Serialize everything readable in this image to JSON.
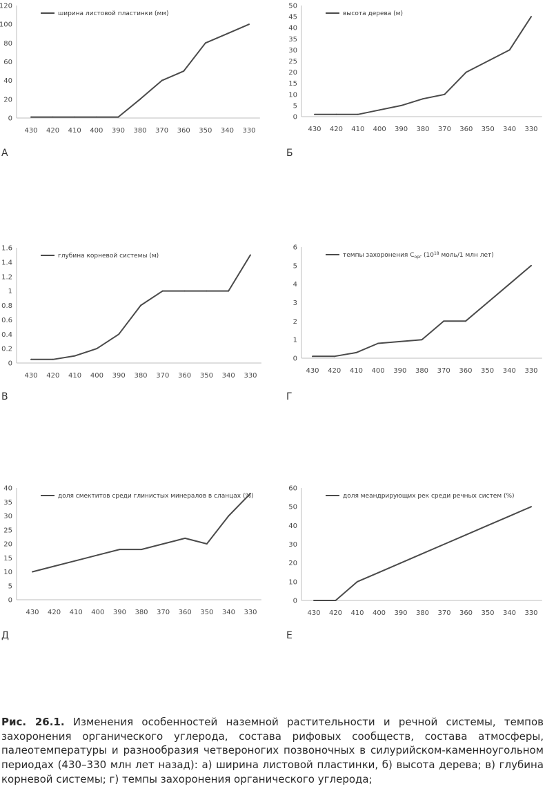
{
  "chart_data": [
    {
      "type": "line",
      "panel_label": "А",
      "legend": "ширина листовой пластинки (мм)",
      "x": [
        "430",
        "420",
        "410",
        "400",
        "390",
        "380",
        "370",
        "360",
        "350",
        "340",
        "330"
      ],
      "y": [
        1,
        1,
        1,
        1,
        1,
        20,
        40,
        50,
        80,
        90,
        100
      ],
      "yticks": [
        "0",
        "20",
        "40",
        "60",
        "80",
        "100",
        "120"
      ],
      "ylim": [
        0,
        120
      ],
      "line_color": "#4a4a4a"
    },
    {
      "type": "line",
      "panel_label": "Б",
      "legend": "высота дерева (м)",
      "x": [
        "430",
        "420",
        "410",
        "400",
        "390",
        "380",
        "370",
        "360",
        "350",
        "340",
        "330"
      ],
      "y": [
        1,
        1,
        1,
        3,
        5,
        8,
        10,
        20,
        25,
        30,
        45
      ],
      "yticks": [
        "0",
        "5",
        "10",
        "15",
        "20",
        "25",
        "30",
        "35",
        "40",
        "45",
        "50"
      ],
      "ylim": [
        0,
        50
      ],
      "line_color": "#4a4a4a"
    },
    {
      "type": "line",
      "panel_label": "В",
      "legend": "глубина корневой системы (м)",
      "x": [
        "430",
        "420",
        "410",
        "400",
        "390",
        "380",
        "370",
        "360",
        "350",
        "340",
        "330"
      ],
      "y": [
        0.05,
        0.05,
        0.1,
        0.2,
        0.4,
        0.8,
        1,
        1,
        1,
        1,
        1.5
      ],
      "yticks": [
        "0",
        "0.2",
        "0.4",
        "0.6",
        "0.8",
        "1",
        "1.2",
        "1.4",
        "1.6"
      ],
      "ylim": [
        0,
        1.6
      ],
      "line_color": "#4a4a4a"
    },
    {
      "type": "line",
      "panel_label": "Г",
      "legend": "темпы захоронения C",
      "legend_sub": "орг",
      "legend_tail_a": " (10",
      "legend_sup": "18",
      "legend_tail_b": " моль/1 млн лет)",
      "x": [
        "430",
        "420",
        "410",
        "400",
        "390",
        "380",
        "370",
        "360",
        "350",
        "340",
        "330"
      ],
      "y": [
        0.1,
        0.1,
        0.3,
        0.8,
        0.9,
        1,
        2,
        2,
        3,
        4,
        5
      ],
      "yticks": [
        "0",
        "1",
        "2",
        "3",
        "4",
        "5",
        "6"
      ],
      "ylim": [
        0,
        6
      ],
      "line_color": "#4a4a4a"
    },
    {
      "type": "line",
      "panel_label": "Д",
      "legend": "доля смектитов среди глинистых минералов в сланцах (%)",
      "x": [
        "430",
        "420",
        "410",
        "400",
        "390",
        "380",
        "370",
        "360",
        "350",
        "340",
        "330"
      ],
      "y": [
        10,
        12,
        14,
        16,
        18,
        18,
        20,
        22,
        20,
        30,
        38
      ],
      "yticks": [
        "0",
        "5",
        "10",
        "15",
        "20",
        "25",
        "30",
        "35",
        "40"
      ],
      "ylim": [
        0,
        40
      ],
      "line_color": "#4a4a4a"
    },
    {
      "type": "line",
      "panel_label": "Е",
      "legend": "доля меандрирующих рек среди речных систем (%)",
      "x": [
        "430",
        "420",
        "410",
        "400",
        "390",
        "380",
        "370",
        "360",
        "350",
        "340",
        "330"
      ],
      "y": [
        0,
        0,
        10,
        15,
        20,
        25,
        30,
        35,
        40,
        45,
        50
      ],
      "yticks": [
        "0",
        "10",
        "20",
        "30",
        "40",
        "50",
        "60"
      ],
      "ylim": [
        0,
        60
      ],
      "line_color": "#4a4a4a"
    }
  ],
  "caption": {
    "bold": "Рис. 26.1.",
    "text": " Изменения особенностей наземной растительности и речной системы, темпов захоронения органического углерода, состава рифовых сообществ, состава атмосферы, палеотемпературы и разнообразия четвероногих позвоночных в силурийском-каменноугольном периодах (430–330 млн лет назад): а) ширина листовой пластинки, б) высота дерева; в) глубина корневой системы; г) темпы захоронения органического углерода;"
  }
}
